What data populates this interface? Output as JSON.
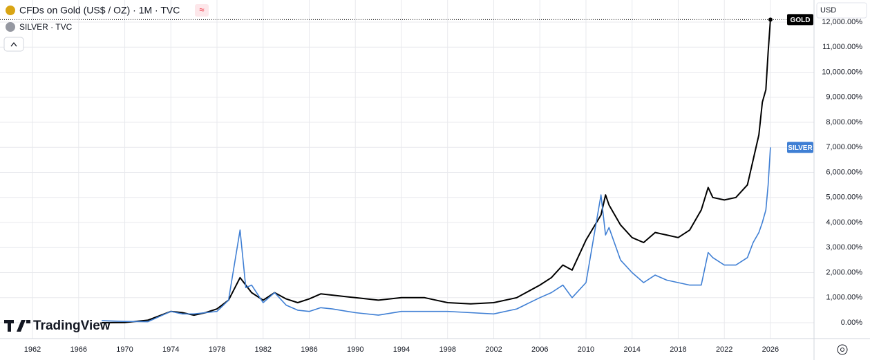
{
  "chart_data": {
    "type": "line",
    "title": "CFDs on Gold (US$ / OZ) · 1M · TVC",
    "status_icon": "≈",
    "subtitle": "SILVER · TVC",
    "currency": "USD",
    "watermark": "TradingView",
    "x": [
      1968,
      1970,
      1972,
      1974,
      1975,
      1976,
      1977,
      1978,
      1979,
      1980,
      1980.5,
      1981,
      1982,
      1983,
      1984,
      1985,
      1986,
      1987,
      1988,
      1990,
      1992,
      1994,
      1996,
      1998,
      2000,
      2002,
      2004,
      2006,
      2007,
      2008,
      2008.8,
      2010,
      2011.3,
      2011.7,
      2012,
      2013,
      2014,
      2015,
      2016,
      2017,
      2018,
      2019,
      2020,
      2020.6,
      2021,
      2022,
      2023,
      2024,
      2024.5,
      2025,
      2025.3,
      2025.6,
      2025.8,
      2026
    ],
    "series": [
      {
        "name": "GOLD",
        "color": "#000000",
        "values": [
          0,
          10,
          100,
          450,
          400,
          300,
          400,
          550,
          900,
          1800,
          1500,
          1200,
          900,
          1200,
          950,
          800,
          950,
          1150,
          1100,
          1000,
          900,
          1000,
          1000,
          800,
          750,
          800,
          1000,
          1500,
          1800,
          2300,
          2100,
          3300,
          4300,
          5100,
          4700,
          3900,
          3400,
          3200,
          3600,
          3500,
          3400,
          3700,
          4500,
          5400,
          5000,
          4900,
          5000,
          5500,
          6500,
          7500,
          8800,
          9300,
          10800,
          12100
        ]
      },
      {
        "name": "SILVER",
        "color": "#3f7fd4",
        "values": [
          80,
          50,
          40,
          450,
          350,
          350,
          400,
          450,
          900,
          3700,
          1400,
          1500,
          800,
          1200,
          700,
          500,
          450,
          600,
          550,
          400,
          300,
          450,
          450,
          450,
          400,
          350,
          550,
          1000,
          1200,
          1500,
          1000,
          1600,
          5100,
          3500,
          3800,
          2500,
          2000,
          1600,
          1900,
          1700,
          1600,
          1500,
          1500,
          2800,
          2600,
          2300,
          2300,
          2600,
          3200,
          3600,
          4000,
          4500,
          5500,
          7000
        ]
      }
    ],
    "xlim": [
      1959.18,
      2029.78
    ],
    "xticks": [
      1962,
      1966,
      1970,
      1974,
      1978,
      1982,
      1986,
      1990,
      1994,
      1998,
      2002,
      2006,
      2010,
      2014,
      2018,
      2022,
      2026
    ],
    "ylim": [
      -634,
      12883
    ],
    "yticks": [
      {
        "value": 0,
        "label": "0.00%"
      },
      {
        "value": 1000,
        "label": "1,000.00%"
      },
      {
        "value": 2000,
        "label": "2,000.00%"
      },
      {
        "value": 3000,
        "label": "3,000.00%"
      },
      {
        "value": 4000,
        "label": "4,000.00%"
      },
      {
        "value": 5000,
        "label": "5,000.00%"
      },
      {
        "value": 6000,
        "label": "6,000.00%"
      },
      {
        "value": 7000,
        "label": "7,000.00%"
      },
      {
        "value": 8000,
        "label": "8,000.00%"
      },
      {
        "value": 9000,
        "label": "9,000.00%"
      },
      {
        "value": 10000,
        "label": "10,000.00%"
      },
      {
        "value": 11000,
        "label": "11,000.00%"
      },
      {
        "value": 12000,
        "label": "12,000.00%"
      }
    ],
    "grid": true
  }
}
